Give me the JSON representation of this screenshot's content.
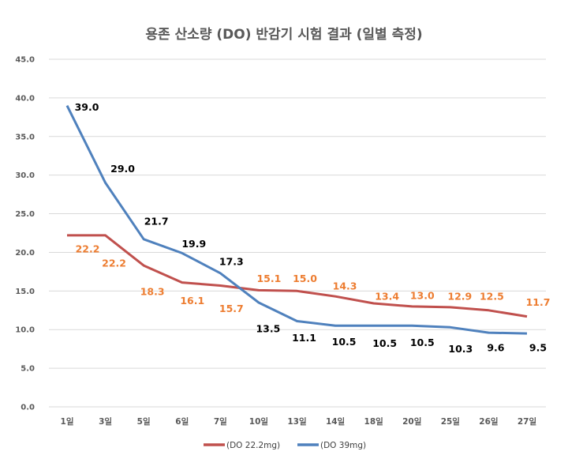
{
  "chart_data": {
    "type": "line",
    "title": "용존 산소량 (DO) 반감기 시험 결과 (일별 측정)",
    "xlabel": "",
    "ylabel": "",
    "categories": [
      "1일",
      "3일",
      "5일",
      "6일",
      "7일",
      "10일",
      "13일",
      "14일",
      "18일",
      "20일",
      "25일",
      "26일",
      "27일"
    ],
    "ylim": [
      0,
      45
    ],
    "yticks": [
      "0.0",
      "5.0",
      "10.0",
      "15.0",
      "20.0",
      "25.0",
      "30.0",
      "35.0",
      "40.0",
      "45.0"
    ],
    "grid": true,
    "legend_position": "bottom",
    "series": [
      {
        "name": "(DO 22.2mg)",
        "color": "#c0504d",
        "label_color": "#ed7d31",
        "values": [
          22.2,
          22.2,
          18.3,
          16.1,
          15.7,
          15.1,
          15.0,
          14.3,
          13.4,
          13.0,
          12.9,
          12.5,
          11.7
        ],
        "labels": [
          "22.2",
          "22.2",
          "18.3",
          "16.1",
          "15.7",
          "15.1",
          "15.0",
          "14.3",
          "13.4",
          "13.0",
          "12.9",
          "12.5",
          "11.7"
        ]
      },
      {
        "name": "(DO 39mg)",
        "color": "#4f81bd",
        "label_color": "#000000",
        "values": [
          39.0,
          29.0,
          21.7,
          19.9,
          17.3,
          13.5,
          11.1,
          10.5,
          10.5,
          10.5,
          10.3,
          9.6,
          9.5
        ],
        "labels": [
          "39.0",
          "29.0",
          "21.7",
          "19.9",
          "17.3",
          "13.5",
          "11.1",
          "10.5",
          "10.5",
          "10.5",
          "10.3",
          "9.6",
          "9.5"
        ]
      }
    ]
  }
}
